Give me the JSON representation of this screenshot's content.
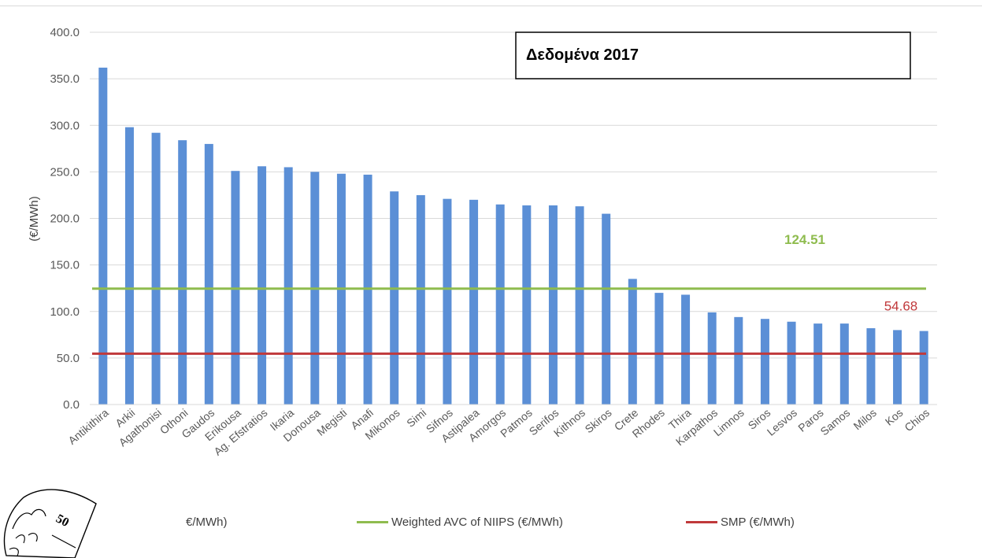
{
  "chart_data": {
    "type": "bar",
    "title": "Δεδομένα 2017",
    "ylabel": "(€/MWh)",
    "xlabel": "",
    "ylim": [
      0,
      400
    ],
    "yticks": [
      "0.0",
      "50.0",
      "100.0",
      "150.0",
      "200.0",
      "250.0",
      "300.0",
      "350.0",
      "400.0"
    ],
    "grid": true,
    "categories": [
      "Antikithira",
      "Arkii",
      "Agathonisi",
      "Othoni",
      "Gaudos",
      "Erikousa",
      "Ag. Efstratios",
      "Ikaria",
      "Donousa",
      "Megisti",
      "Anafi",
      "Mikonos",
      "Simi",
      "Sifnos",
      "Astipalea",
      "Amorgos",
      "Patmos",
      "Serifos",
      "Kithnos",
      "Skiros",
      "Crete",
      "Rhodes",
      "Thira",
      "Karpathos",
      "Limnos",
      "Siros",
      "Lesvos",
      "Paros",
      "Samos",
      "Milos",
      "Kos",
      "Chios"
    ],
    "values": [
      362,
      298,
      292,
      284,
      280,
      251,
      256,
      255,
      250,
      248,
      247,
      229,
      225,
      221,
      220,
      215,
      214,
      214,
      213,
      205,
      135,
      120,
      118,
      99,
      94,
      92,
      89,
      87,
      87,
      82,
      80,
      79
    ],
    "bar_color": "#5b8fd6",
    "lines": [
      {
        "name": "Weighted AVC of NIIPS (€/MWh)",
        "value": 124.51,
        "label": "124.51",
        "color": "#8fbc4f"
      },
      {
        "name": "SMP (€/MWh)",
        "value": 54.68,
        "label": "54.68",
        "color": "#c0393b"
      }
    ],
    "legend": {
      "position": "bottom",
      "items": [
        {
          "name": "€/MWh)",
          "color": ""
        },
        {
          "name": "Weighted AVC of NIIPS (€/MWh)",
          "color": "#8fbc4f"
        },
        {
          "name": "SMP (€/MWh)",
          "color": "#c0393b"
        }
      ]
    }
  },
  "logo": {
    "text": "50"
  }
}
